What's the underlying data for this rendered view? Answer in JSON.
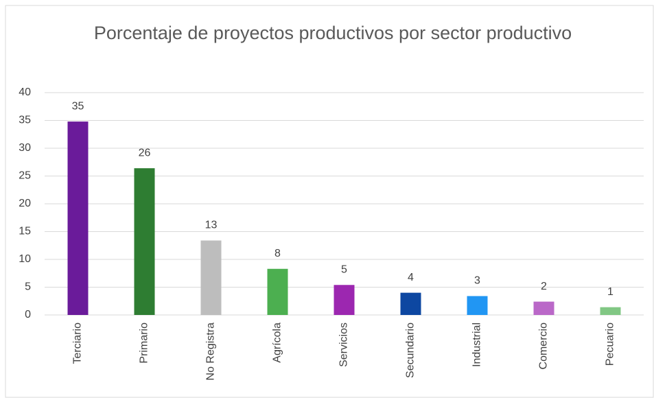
{
  "chart_data": {
    "type": "bar",
    "title": "Porcentaje de proyectos productivos por sector productivo",
    "categories": [
      "Terciario",
      "Primario",
      "No Registra",
      "Agrícola",
      "Servicios",
      "Secundario",
      "Industrial",
      "Comercio",
      "Pecuario"
    ],
    "values": [
      34.8,
      26.4,
      13.4,
      8.3,
      5.4,
      4.0,
      3.4,
      2.4,
      1.4
    ],
    "value_labels": [
      "35",
      "26",
      "13",
      "8",
      "5",
      "4",
      "3",
      "2",
      "1"
    ],
    "colors": [
      "#6a1b9a",
      "#2e7d32",
      "#bdbdbd",
      "#4caf50",
      "#9c27b0",
      "#0d47a1",
      "#2196f3",
      "#ba68c8",
      "#81c784"
    ],
    "ylim": [
      0,
      40
    ],
    "yticks": [
      0,
      5,
      10,
      15,
      20,
      25,
      30,
      35,
      40
    ],
    "grid": true
  }
}
